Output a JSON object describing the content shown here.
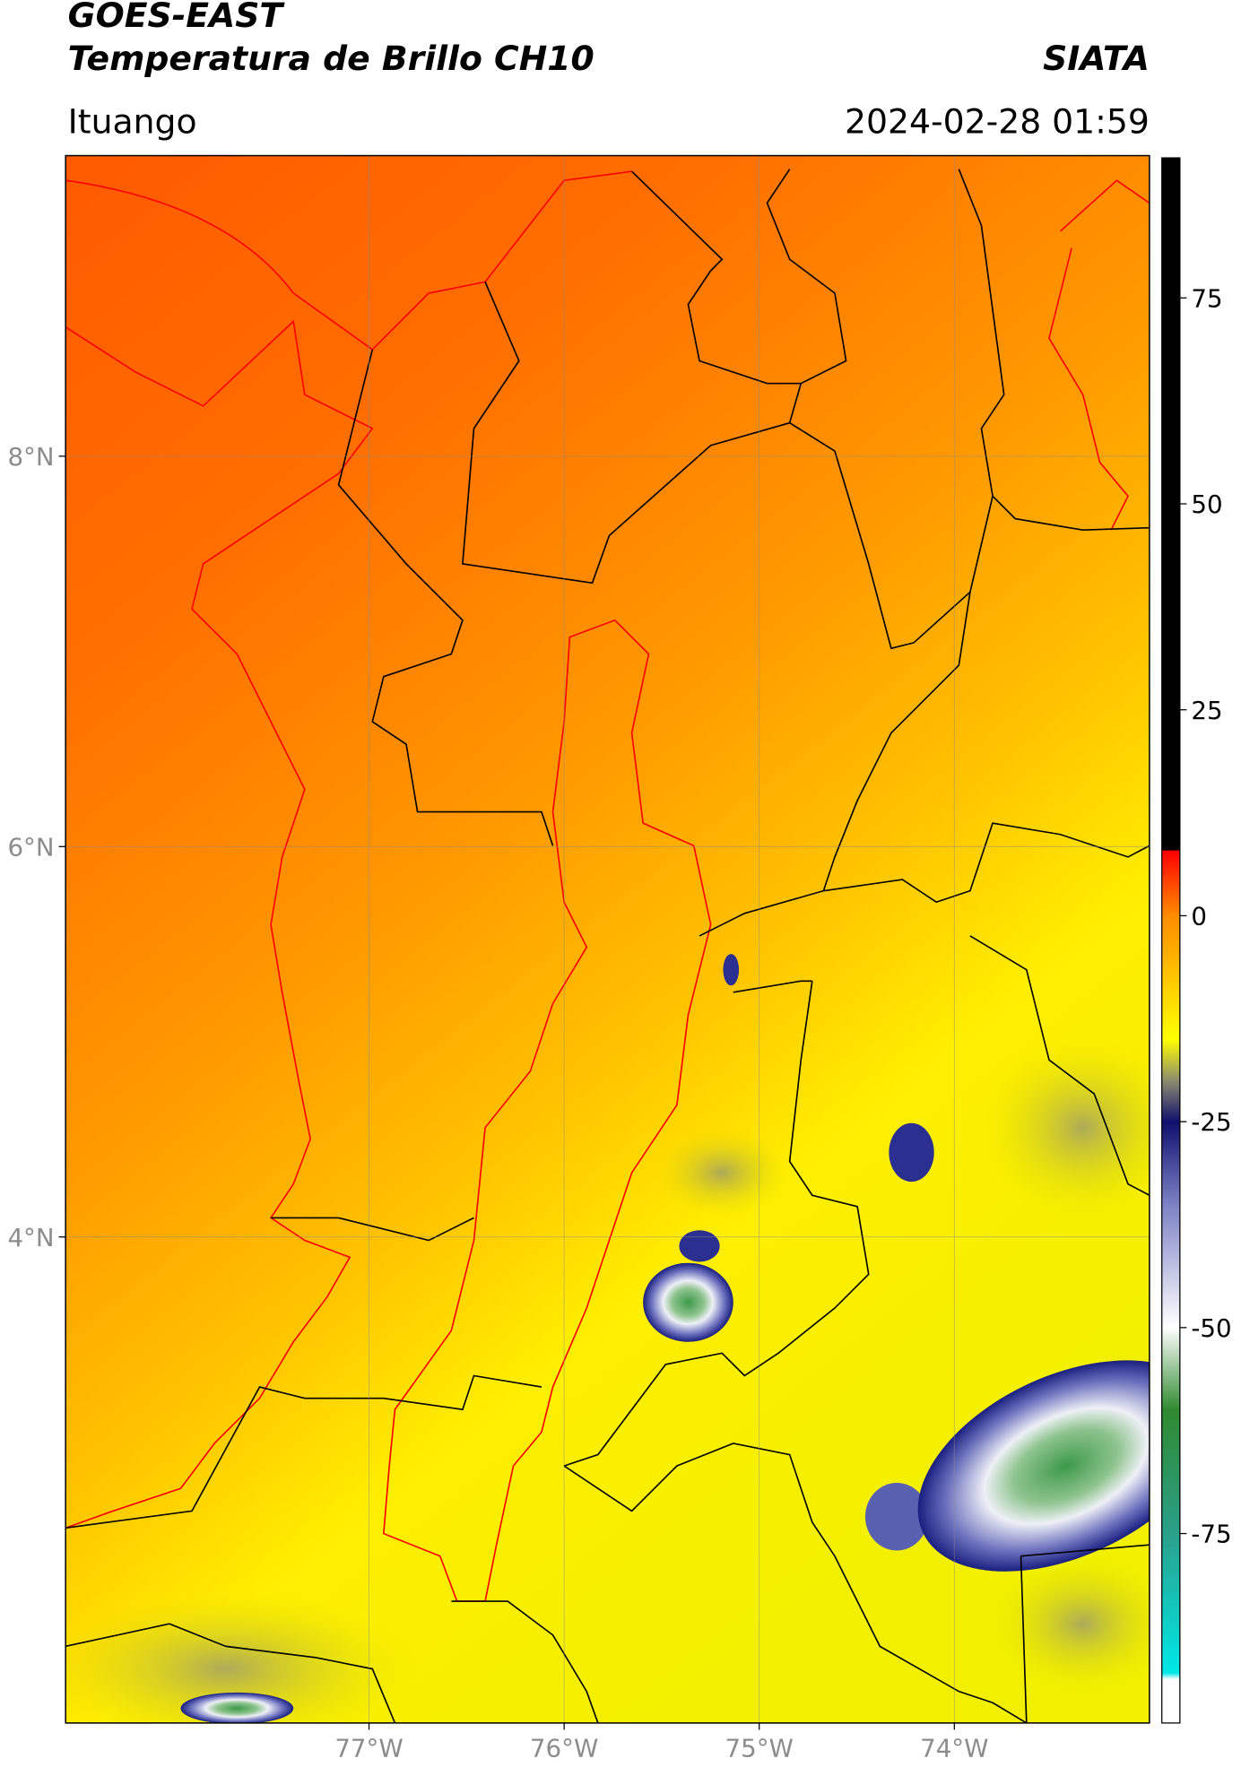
{
  "header": {
    "satellite": "GOES-EAST",
    "product": "Temperatura de Brillo CH10",
    "source": "SIATA",
    "location": "Ituango",
    "datetime": "2024-02-28 01:59"
  },
  "map": {
    "lon_range": [
      -78.555,
      -73.0
    ],
    "lat_range": [
      1.51,
      9.54
    ],
    "lon_ticks": [
      {
        "value": -77,
        "label": "77°W"
      },
      {
        "value": -76,
        "label": "76°W"
      },
      {
        "value": -75,
        "label": "75°W"
      },
      {
        "value": -74,
        "label": "74°W"
      }
    ],
    "lat_ticks": [
      {
        "value": 4,
        "label": "4°N"
      },
      {
        "value": 6,
        "label": "6°N"
      },
      {
        "value": 8,
        "label": "8°N"
      }
    ],
    "grid": true
  },
  "colorbar": {
    "range": [
      -98,
      92
    ],
    "ticks": [
      -75,
      -50,
      -25,
      0,
      25,
      50,
      75
    ]
  }
}
